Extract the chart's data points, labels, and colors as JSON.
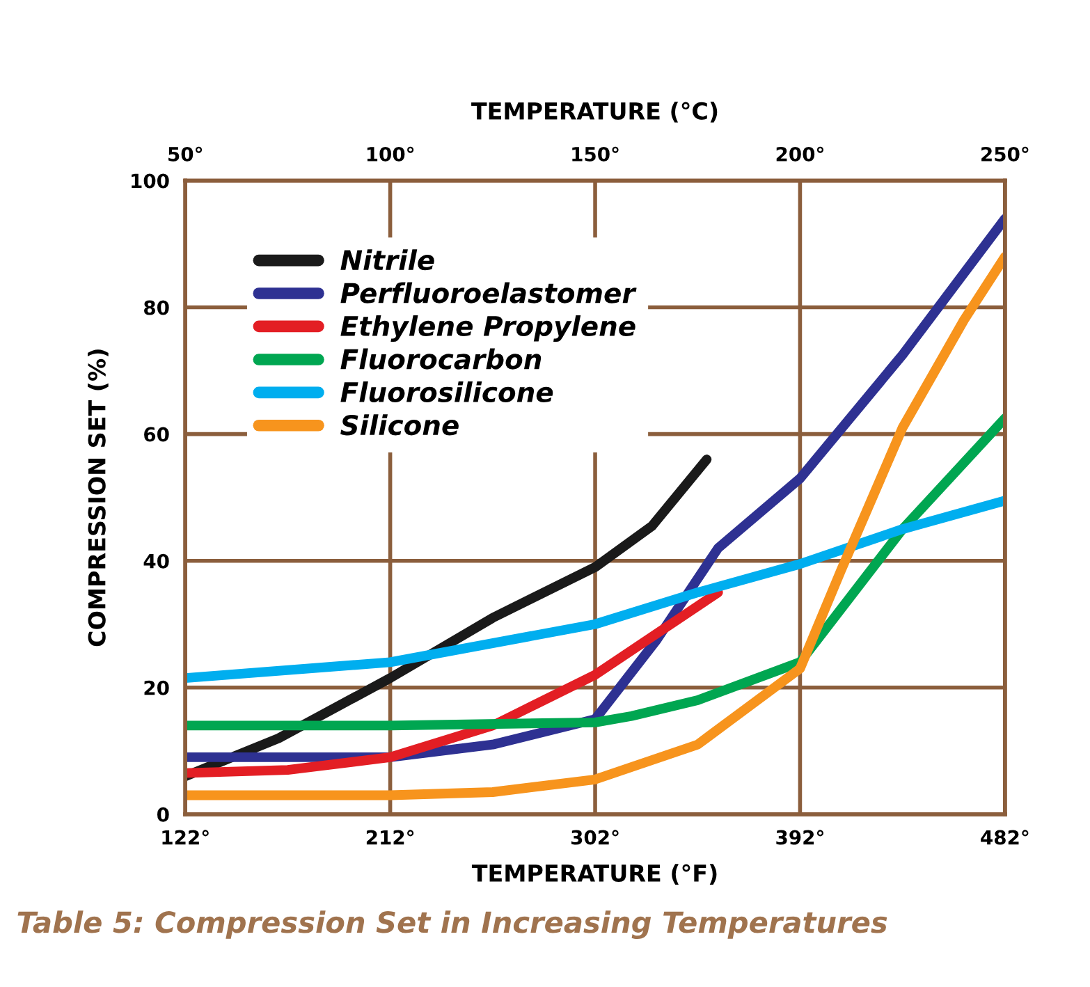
{
  "chart_data": {
    "type": "line",
    "xlabel": "TEMPERATURE (°F)",
    "x2label": "TEMPERATURE (°C)",
    "ylabel": "COMPRESSION SET (%)",
    "annotations": [
      "Table 5: Compression Set in Increasing Temperatures"
    ],
    "xlim": [
      122,
      482
    ],
    "xticks": [
      {
        "value": 122,
        "label": "122°"
      },
      {
        "value": 212,
        "label": "212°"
      },
      {
        "value": 302,
        "label": "302°"
      },
      {
        "value": 392,
        "label": "392°"
      },
      {
        "value": 482,
        "label": "482°"
      }
    ],
    "x2lim": [
      50,
      250
    ],
    "x2ticks": [
      {
        "value": 50,
        "label": "50°"
      },
      {
        "value": 100,
        "label": "100°"
      },
      {
        "value": 150,
        "label": "150°"
      },
      {
        "value": 200,
        "label": "200°"
      },
      {
        "value": 250,
        "label": "250°"
      }
    ],
    "ylim": [
      0,
      100
    ],
    "yticks": [
      0,
      20,
      40,
      60,
      80,
      100
    ],
    "grid": true,
    "legend": "top left",
    "marker": "none",
    "line_style": "solid",
    "series": [
      {
        "name": "Nitrile",
        "color": "#1a1a1a",
        "x": [
          122,
          163,
          212,
          257,
          302,
          327,
          351
        ],
        "values": [
          6,
          12,
          21.5,
          31,
          39,
          45.5,
          56
        ]
      },
      {
        "name": "Perfluoroelastomer",
        "color": "#2e3192",
        "x": [
          122,
          212,
          257,
          302,
          329,
          356,
          392,
          437,
          482
        ],
        "values": [
          9,
          9,
          11,
          15,
          27.5,
          42,
          53,
          72.5,
          94
        ]
      },
      {
        "name": "Ethylene Propylene",
        "color": "#e31e24",
        "x": [
          122,
          167,
          212,
          257,
          302,
          356
        ],
        "values": [
          6.5,
          7,
          9,
          14,
          22,
          35
        ]
      },
      {
        "name": "Fluorocarbon",
        "color": "#00a651",
        "x": [
          122,
          212,
          302,
          318,
          347,
          392,
          437,
          482
        ],
        "values": [
          14,
          14,
          14.5,
          15.5,
          18,
          24,
          45,
          62.5
        ]
      },
      {
        "name": "Fluorosilicone",
        "color": "#00aeef",
        "x": [
          122,
          212,
          302,
          347,
          392,
          437,
          482
        ],
        "values": [
          21.5,
          24,
          30,
          35,
          39.5,
          45,
          49.5
        ]
      },
      {
        "name": "Silicone",
        "color": "#f7941d",
        "x": [
          122,
          212,
          257,
          302,
          347,
          392,
          410,
          437,
          464,
          482
        ],
        "values": [
          3,
          3,
          3.5,
          5.5,
          11,
          23,
          38.5,
          61,
          78,
          88
        ]
      }
    ]
  }
}
